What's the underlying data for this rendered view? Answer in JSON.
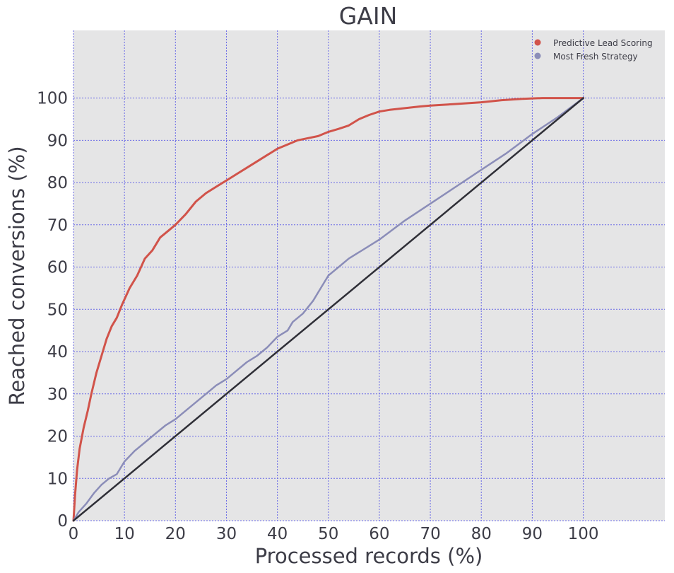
{
  "chart_data": {
    "type": "line",
    "title": "GAIN",
    "xlabel": "Processed records (%)",
    "ylabel": "Reached conversions (%)",
    "xlim": [
      0,
      116
    ],
    "ylim": [
      0,
      116
    ],
    "xticks": [
      "0",
      "10",
      "20",
      "30",
      "40",
      "50",
      "60",
      "70",
      "80",
      "90",
      "100"
    ],
    "yticks": [
      "0",
      "10",
      "20",
      "30",
      "40",
      "50",
      "60",
      "70",
      "80",
      "90",
      "100"
    ],
    "grid": true,
    "legend_position": "top-right",
    "series": [
      {
        "name": "Predictive Lead Scoring",
        "color": "#d1534a",
        "points": [
          [
            0,
            0
          ],
          [
            0.3,
            6
          ],
          [
            0.7,
            12
          ],
          [
            1.2,
            17
          ],
          [
            2,
            22
          ],
          [
            2.8,
            26
          ],
          [
            3.5,
            30
          ],
          [
            4.5,
            35
          ],
          [
            5.5,
            39
          ],
          [
            6.5,
            43
          ],
          [
            7.5,
            46
          ],
          [
            8.5,
            48
          ],
          [
            9.5,
            51
          ],
          [
            11,
            55
          ],
          [
            12.5,
            58
          ],
          [
            14,
            62
          ],
          [
            15.5,
            64
          ],
          [
            17,
            67
          ],
          [
            18.5,
            68.5
          ],
          [
            20,
            70
          ],
          [
            22,
            72.5
          ],
          [
            24,
            75.5
          ],
          [
            26,
            77.5
          ],
          [
            28,
            79
          ],
          [
            30,
            80.5
          ],
          [
            32,
            82
          ],
          [
            34,
            83.5
          ],
          [
            36,
            85
          ],
          [
            38,
            86.5
          ],
          [
            40,
            88
          ],
          [
            42,
            89
          ],
          [
            44,
            90
          ],
          [
            46,
            90.5
          ],
          [
            48,
            91
          ],
          [
            50,
            92
          ],
          [
            52,
            92.7
          ],
          [
            54,
            93.5
          ],
          [
            56,
            95
          ],
          [
            58,
            96
          ],
          [
            60,
            96.8
          ],
          [
            62,
            97.2
          ],
          [
            65,
            97.6
          ],
          [
            68,
            98
          ],
          [
            70,
            98.2
          ],
          [
            75,
            98.6
          ],
          [
            80,
            99
          ],
          [
            84,
            99.5
          ],
          [
            88,
            99.8
          ],
          [
            92,
            100
          ],
          [
            100,
            100
          ]
        ]
      },
      {
        "name": "Most Fresh Strategy",
        "color": "#8b8db8",
        "points": [
          [
            0,
            0
          ],
          [
            1,
            2
          ],
          [
            2.5,
            4
          ],
          [
            4,
            6.5
          ],
          [
            5.5,
            8.5
          ],
          [
            7,
            10
          ],
          [
            8.5,
            11
          ],
          [
            10,
            14
          ],
          [
            12,
            16.5
          ],
          [
            14,
            18.5
          ],
          [
            16,
            20.5
          ],
          [
            18,
            22.5
          ],
          [
            20,
            24
          ],
          [
            22,
            26
          ],
          [
            24,
            28
          ],
          [
            26,
            30
          ],
          [
            28,
            32
          ],
          [
            30,
            33.5
          ],
          [
            32,
            35.5
          ],
          [
            34,
            37.5
          ],
          [
            36,
            39
          ],
          [
            38,
            41
          ],
          [
            40,
            43.5
          ],
          [
            42,
            45
          ],
          [
            43,
            47
          ],
          [
            45,
            49
          ],
          [
            47,
            52
          ],
          [
            48,
            54
          ],
          [
            49,
            56
          ],
          [
            50,
            58
          ],
          [
            52,
            60
          ],
          [
            54,
            62
          ],
          [
            56,
            63.5
          ],
          [
            58,
            65
          ],
          [
            60,
            66.5
          ],
          [
            65,
            71
          ],
          [
            70,
            75
          ],
          [
            75,
            79
          ],
          [
            80,
            83
          ],
          [
            85,
            87
          ],
          [
            90,
            91.5
          ],
          [
            95,
            95.5
          ],
          [
            100,
            100
          ]
        ]
      },
      {
        "name": "",
        "color": "#2f2f37",
        "points": [
          [
            0,
            0
          ],
          [
            100,
            100
          ]
        ]
      }
    ],
    "legend": [
      "Predictive Lead Scoring",
      "Most Fresh Strategy"
    ]
  }
}
